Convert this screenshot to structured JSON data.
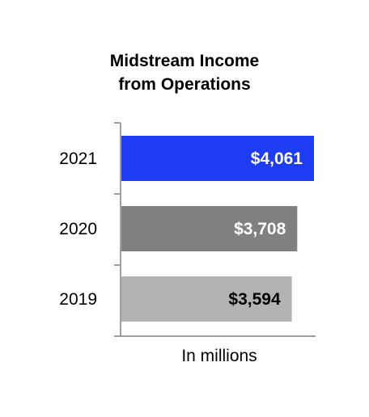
{
  "chart_data": {
    "type": "bar",
    "orientation": "horizontal",
    "title": [
      "Midstream Income",
      "from Operations"
    ],
    "xlabel": "In millions",
    "ylabel": "",
    "categories": [
      "2021",
      "2020",
      "2019"
    ],
    "values": [
      4061,
      3708,
      3594
    ],
    "data_labels": [
      "$4,061",
      "$3,708",
      "$3,594"
    ],
    "colors": [
      "#1f3cf5",
      "#808080",
      "#b3b3b3"
    ],
    "label_colors": [
      "#ffffff",
      "#ffffff",
      "#000000"
    ],
    "xlim": [
      0,
      4061
    ],
    "grid": false,
    "legend": "none"
  }
}
